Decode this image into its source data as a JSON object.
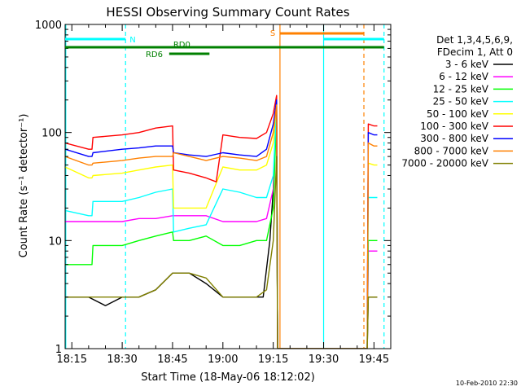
{
  "chart_data": {
    "type": "line",
    "title": "HESSI Observing Summary Count Rates",
    "xlabel": "Start Time (18-May-06 18:12:02)",
    "ylabel": "Count Rate (s⁻¹ detector⁻¹)",
    "yscale": "log",
    "ylim": [
      1,
      1000
    ],
    "xlim_minutes_of_day": [
      1093,
      1190
    ],
    "x_ticks": [
      {
        "label": "18:15",
        "t": 1095
      },
      {
        "label": "18:30",
        "t": 1110
      },
      {
        "label": "18:45",
        "t": 1125
      },
      {
        "label": "19:00",
        "t": 1140
      },
      {
        "label": "19:15",
        "t": 1155
      },
      {
        "label": "19:30",
        "t": 1170
      },
      {
        "label": "19:45",
        "t": 1185
      }
    ],
    "y_ticks": [
      {
        "label": "1",
        "v": 1
      },
      {
        "label": "10",
        "v": 10
      },
      {
        "label": "100",
        "v": 100
      },
      {
        "label": "1000",
        "v": 1000
      }
    ],
    "grid": false,
    "legend_position": "right",
    "legend_header": [
      "Det 1,3,4,5,6,9,",
      "FDecim 1, Att 0"
    ],
    "series": [
      {
        "name": "3 - 6 keV",
        "color": "#000000",
        "points": [
          [
            1093,
            3
          ],
          [
            1100,
            3
          ],
          [
            1105,
            2.5
          ],
          [
            1110,
            3
          ],
          [
            1115,
            3
          ],
          [
            1120,
            3.5
          ],
          [
            1125,
            5
          ],
          [
            1130,
            5
          ],
          [
            1135,
            4
          ],
          [
            1140,
            3
          ],
          [
            1145,
            3
          ],
          [
            1150,
            3
          ],
          [
            1152,
            3
          ],
          [
            1154,
            10
          ],
          [
            1155,
            30
          ],
          [
            1156,
            200
          ],
          [
            1156.3,
            1
          ],
          [
            1183,
            1
          ],
          [
            1183.3,
            3
          ],
          [
            1184,
            3
          ],
          [
            1185,
            3
          ],
          [
            1186,
            3
          ]
        ]
      },
      {
        "name": "6 - 12 keV",
        "color": "#ff00ff",
        "points": [
          [
            1093,
            15
          ],
          [
            1100,
            15
          ],
          [
            1100.3,
            15
          ],
          [
            1110,
            15
          ],
          [
            1115,
            16
          ],
          [
            1120,
            16
          ],
          [
            1125,
            17
          ],
          [
            1130,
            17
          ],
          [
            1135,
            17
          ],
          [
            1140,
            15
          ],
          [
            1145,
            15
          ],
          [
            1150,
            15
          ],
          [
            1153,
            16
          ],
          [
            1155,
            30
          ],
          [
            1156,
            170
          ],
          [
            1156.3,
            1
          ],
          [
            1183,
            1
          ],
          [
            1183.3,
            8
          ],
          [
            1185,
            8
          ],
          [
            1186,
            8
          ]
        ]
      },
      {
        "name": "12 - 25 keV",
        "color": "#00ff00",
        "points": [
          [
            1093,
            6
          ],
          [
            1098,
            6
          ],
          [
            1101,
            6
          ],
          [
            1101.3,
            9
          ],
          [
            1110,
            9
          ],
          [
            1115,
            10
          ],
          [
            1120,
            11
          ],
          [
            1125,
            12
          ],
          [
            1125.3,
            10
          ],
          [
            1130,
            10
          ],
          [
            1135,
            11
          ],
          [
            1140,
            9
          ],
          [
            1145,
            9
          ],
          [
            1150,
            10
          ],
          [
            1153,
            10
          ],
          [
            1155,
            20
          ],
          [
            1156,
            160
          ],
          [
            1156.3,
            1
          ],
          [
            1183,
            1
          ],
          [
            1183.3,
            10
          ],
          [
            1185,
            10
          ],
          [
            1186,
            10
          ]
        ]
      },
      {
        "name": "25 - 50 keV",
        "color": "#00ffff",
        "points": [
          [
            1093,
            19
          ],
          [
            1100,
            17
          ],
          [
            1101,
            17
          ],
          [
            1101.3,
            23
          ],
          [
            1110,
            23
          ],
          [
            1115,
            25
          ],
          [
            1120,
            28
          ],
          [
            1125,
            30
          ],
          [
            1125.3,
            12
          ],
          [
            1130,
            13
          ],
          [
            1135,
            14
          ],
          [
            1140,
            30
          ],
          [
            1145,
            28
          ],
          [
            1150,
            25
          ],
          [
            1153,
            25
          ],
          [
            1155,
            40
          ],
          [
            1156,
            180
          ],
          [
            1156.3,
            1
          ],
          [
            1183,
            1
          ],
          [
            1183.3,
            25
          ],
          [
            1185,
            25
          ],
          [
            1186,
            25
          ]
        ]
      },
      {
        "name": "50 - 100 keV",
        "color": "#ffff00",
        "points": [
          [
            1093,
            48
          ],
          [
            1100,
            38
          ],
          [
            1101,
            38
          ],
          [
            1101.3,
            40
          ],
          [
            1110,
            42
          ],
          [
            1115,
            45
          ],
          [
            1120,
            48
          ],
          [
            1125,
            50
          ],
          [
            1125.3,
            20
          ],
          [
            1130,
            20
          ],
          [
            1135,
            20
          ],
          [
            1140,
            48
          ],
          [
            1145,
            45
          ],
          [
            1150,
            45
          ],
          [
            1153,
            50
          ],
          [
            1155,
            80
          ],
          [
            1156,
            190
          ],
          [
            1156.3,
            1
          ],
          [
            1183,
            1
          ],
          [
            1183.3,
            52
          ],
          [
            1185,
            50
          ],
          [
            1186,
            50
          ]
        ]
      },
      {
        "name": "100 - 300 keV",
        "color": "#ff0000",
        "points": [
          [
            1093,
            80
          ],
          [
            1100,
            70
          ],
          [
            1101,
            70
          ],
          [
            1101.3,
            90
          ],
          [
            1110,
            95
          ],
          [
            1115,
            100
          ],
          [
            1120,
            110
          ],
          [
            1125,
            115
          ],
          [
            1125.3,
            45
          ],
          [
            1130,
            42
          ],
          [
            1135,
            38
          ],
          [
            1138,
            35
          ],
          [
            1140,
            95
          ],
          [
            1145,
            90
          ],
          [
            1150,
            88
          ],
          [
            1153,
            100
          ],
          [
            1155,
            150
          ],
          [
            1156,
            220
          ],
          [
            1156.3,
            1
          ],
          [
            1183,
            1
          ],
          [
            1183.3,
            120
          ],
          [
            1185,
            115
          ],
          [
            1186,
            115
          ]
        ]
      },
      {
        "name": "300 - 800 keV",
        "color": "#0000ff",
        "points": [
          [
            1093,
            70
          ],
          [
            1100,
            60
          ],
          [
            1101,
            60
          ],
          [
            1101.3,
            65
          ],
          [
            1110,
            70
          ],
          [
            1115,
            72
          ],
          [
            1120,
            75
          ],
          [
            1125,
            75
          ],
          [
            1125.3,
            65
          ],
          [
            1130,
            62
          ],
          [
            1135,
            60
          ],
          [
            1140,
            65
          ],
          [
            1145,
            62
          ],
          [
            1150,
            60
          ],
          [
            1153,
            70
          ],
          [
            1155,
            120
          ],
          [
            1156,
            200
          ],
          [
            1156.3,
            1
          ],
          [
            1183,
            1
          ],
          [
            1183.3,
            100
          ],
          [
            1185,
            95
          ],
          [
            1186,
            95
          ]
        ]
      },
      {
        "name": "800 - 7000 keV",
        "color": "#ff8000",
        "points": [
          [
            1093,
            60
          ],
          [
            1100,
            50
          ],
          [
            1101,
            50
          ],
          [
            1101.3,
            52
          ],
          [
            1110,
            55
          ],
          [
            1115,
            58
          ],
          [
            1120,
            60
          ],
          [
            1125,
            60
          ],
          [
            1125.3,
            65
          ],
          [
            1130,
            60
          ],
          [
            1135,
            55
          ],
          [
            1140,
            60
          ],
          [
            1145,
            58
          ],
          [
            1150,
            55
          ],
          [
            1153,
            60
          ],
          [
            1155,
            100
          ],
          [
            1156,
            180
          ],
          [
            1156.3,
            1
          ],
          [
            1183,
            1
          ],
          [
            1183.3,
            80
          ],
          [
            1185,
            75
          ],
          [
            1186,
            75
          ]
        ]
      },
      {
        "name": "7000 - 20000 keV",
        "color": "#808000",
        "points": [
          [
            1093,
            3
          ],
          [
            1100,
            3
          ],
          [
            1105,
            3
          ],
          [
            1110,
            3
          ],
          [
            1115,
            3
          ],
          [
            1120,
            3.5
          ],
          [
            1125,
            5
          ],
          [
            1130,
            5
          ],
          [
            1135,
            4.5
          ],
          [
            1140,
            3
          ],
          [
            1145,
            3
          ],
          [
            1150,
            3
          ],
          [
            1153,
            3.5
          ],
          [
            1155,
            10
          ],
          [
            1156,
            60
          ],
          [
            1156.3,
            1
          ],
          [
            1183,
            1
          ],
          [
            1183.3,
            3
          ],
          [
            1185,
            3
          ],
          [
            1186,
            3
          ]
        ]
      }
    ],
    "state_bars": [
      {
        "label": "N",
        "color": "#00ffff",
        "level": 1,
        "ranges": [
          [
            1093,
            1111
          ],
          [
            1170,
            1188
          ]
        ]
      },
      {
        "label": "S",
        "color": "#ff8000",
        "level": 2,
        "ranges": [
          [
            1157,
            1182
          ]
        ]
      },
      {
        "label": "RD0",
        "color": "#008000",
        "level": 3,
        "ranges": [
          [
            1093,
            1188
          ]
        ]
      },
      {
        "label": "RD6",
        "color": "#008000",
        "level": 4,
        "ranges": [
          [
            1124,
            1136
          ]
        ]
      }
    ],
    "vertical_lines": [
      {
        "t": 1093.2,
        "color": "#00ffff",
        "style": "solid"
      },
      {
        "t": 1111,
        "color": "#00ffff",
        "style": "dashed"
      },
      {
        "t": 1157,
        "color": "#ff8000",
        "style": "solid"
      },
      {
        "t": 1170,
        "color": "#00ffff",
        "style": "solid"
      },
      {
        "t": 1182,
        "color": "#ff8000",
        "style": "dashed"
      },
      {
        "t": 1188,
        "color": "#00ffff",
        "style": "dashed"
      }
    ]
  },
  "footer": {
    "timestamp": "10-Feb-2010 22:30"
  }
}
